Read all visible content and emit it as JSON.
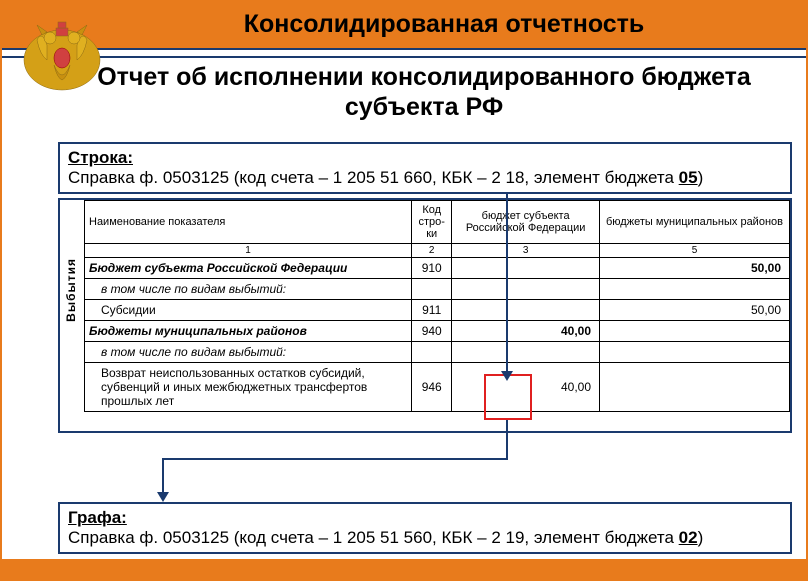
{
  "colors": {
    "accent": "#e87b1c",
    "navy": "#1a3a6e",
    "red": "#e02020",
    "text": "#000000",
    "bg": "#ffffff"
  },
  "title_main": "Консолидированная отчетность",
  "title_sub": "Отчет об исполнении консолидированного бюджета субъекта РФ",
  "box_top": {
    "label": "Строка:",
    "text_prefix": "Справка ф. 0503125 (код счета – 1 205 51 660, КБК – 2 18, элемент бюджета ",
    "code": "05",
    "text_suffix": ")"
  },
  "box_bottom": {
    "label": "Графа:",
    "text_prefix": "Справка ф. 0503125 (код счета – 1 205 51 560, КБК – 2 19, элемент бюджета ",
    "code": "02",
    "text_suffix": ")"
  },
  "vlabel": "Выбытия",
  "table": {
    "headers": [
      "Наименование показателя",
      "Код стро-ки",
      "бюджет субъекта Российской Федерации",
      "бюджеты муниципальных районов"
    ],
    "col_nums": [
      "1",
      "2",
      "3",
      "5"
    ],
    "rows": [
      {
        "name": "Бюджет субъекта Российской Федерации",
        "code": "910",
        "c3": "",
        "c5": "50,00",
        "bold": true
      },
      {
        "name": "в том числе по видам выбытий:",
        "code": "",
        "c3": "",
        "c5": "",
        "ital": true,
        "sub": true
      },
      {
        "name": "Субсидии",
        "code": "911",
        "c3": "",
        "c5": "50,00",
        "sub": true
      },
      {
        "name": "Бюджеты муниципальных районов",
        "code": "940",
        "c3": "40,00",
        "c5": "",
        "bold": true
      },
      {
        "name": "в том числе по видам выбытий:",
        "code": "",
        "c3": "",
        "c5": "",
        "ital": true,
        "sub": true
      },
      {
        "name": "Возврат неиспользованных остатков субсидий, субвенций и иных межбюджетных трансфертов прошлых лет",
        "code": "946",
        "c3": "40,00",
        "c5": "",
        "sub": true
      }
    ]
  }
}
